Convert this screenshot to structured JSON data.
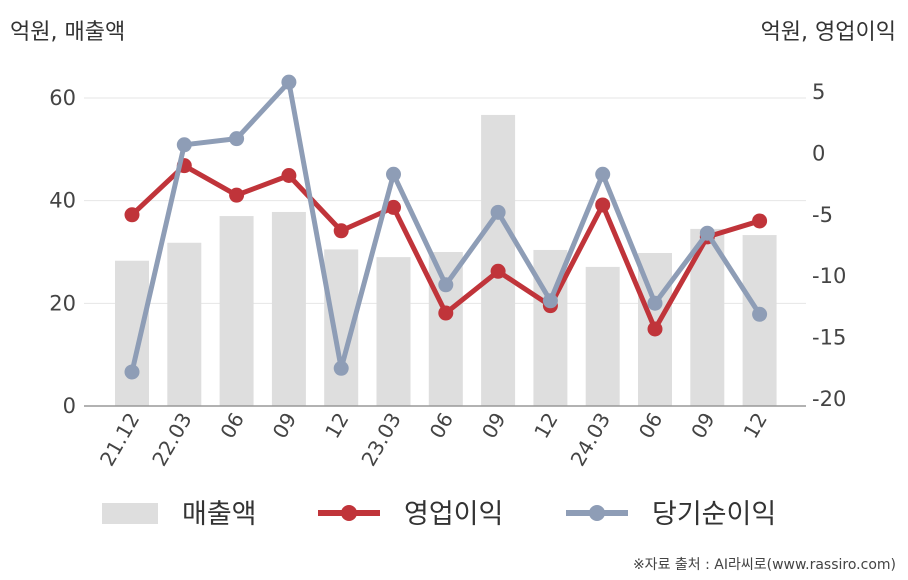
{
  "chart_data": {
    "type": "bar+line",
    "left_axis_unit": "억원, 매출액",
    "right_axis_unit": "억원, 영업이익",
    "categories": [
      "21.12",
      "22.03",
      "06",
      "09",
      "12",
      "23.03",
      "06",
      "09",
      "12",
      "24.03",
      "06",
      "09",
      "12"
    ],
    "left_axis": {
      "ylim": [
        0,
        60
      ],
      "ticks": [
        "0",
        "20",
        "40",
        "60"
      ]
    },
    "right_axis": {
      "ylim": [
        -20,
        5
      ],
      "ticks": [
        "5",
        "0",
        "-5",
        "-10",
        "-15",
        "-20"
      ]
    },
    "series": [
      {
        "name": "매출액",
        "kind": "bar",
        "axis": "left",
        "color": "#dedede",
        "values": [
          28.3,
          31.8,
          37.0,
          37.8,
          30.5,
          29.0,
          30.0,
          56.7,
          30.4,
          27.1,
          29.8,
          34.5,
          33.3
        ]
      },
      {
        "name": "영업이익",
        "kind": "line",
        "axis": "right",
        "color": "#c0343a",
        "values": [
          -5.0,
          -1.0,
          -3.4,
          -1.8,
          -6.3,
          -4.4,
          -13.0,
          -9.6,
          -12.4,
          -4.2,
          -14.3,
          -6.8,
          -5.5
        ]
      },
      {
        "name": "당기순이익",
        "kind": "line",
        "axis": "right",
        "color": "#8e9db6",
        "values": [
          -17.8,
          0.7,
          1.2,
          5.8,
          -17.5,
          -1.7,
          -10.7,
          -4.8,
          -12.0,
          -1.7,
          -12.2,
          -6.5,
          -13.1
        ]
      }
    ],
    "grid": true,
    "legend_position": "bottom"
  },
  "source_note": "※자료 출처 : AI라씨로(www.rassiro.com)"
}
